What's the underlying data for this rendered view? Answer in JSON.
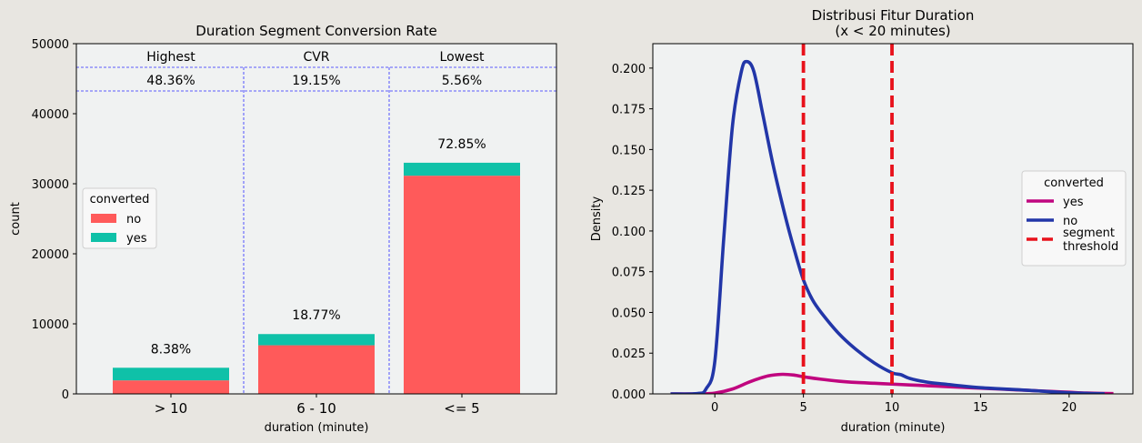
{
  "chart_data": [
    {
      "type": "bar",
      "title": "Duration Segment Conversion Rate",
      "xlabel": "duration (minute)",
      "ylabel": "count",
      "ylim": [
        0,
        50000
      ],
      "yticks": [
        0,
        10000,
        20000,
        30000,
        40000,
        50000
      ],
      "stacked": true,
      "categories": [
        "> 10",
        "6 - 10",
        "<= 5"
      ],
      "series": [
        {
          "name": "no",
          "color": "#ff5a5a",
          "values": [
            1930,
            6940,
            31150
          ]
        },
        {
          "name": "yes",
          "color": "#0fc1a8",
          "values": [
            1800,
            1600,
            1850
          ]
        }
      ],
      "bar_labels": [
        "8.38%",
        "18.77%",
        "72.85%"
      ],
      "legend": {
        "title": "converted",
        "position": "center-left",
        "entries": [
          "no",
          "yes"
        ]
      },
      "table": {
        "headers": [
          "Highest",
          "CVR",
          "Lowest"
        ],
        "values": [
          "48.36%",
          "19.15%",
          "5.56%"
        ]
      },
      "background": "#f0f2f2"
    },
    {
      "type": "line",
      "title": "Distribusi Fitur Duration\n(x < 20 minutes)",
      "title_lines": [
        "Distribusi Fitur Duration",
        "(x < 20 minutes)"
      ],
      "xlabel": "duration (minute)",
      "ylabel": "Density",
      "xlim": [
        -3.5,
        23.6
      ],
      "ylim": [
        0,
        0.215
      ],
      "xticks": [
        0,
        5,
        10,
        15,
        20
      ],
      "yticks": [
        "0.000",
        "0.025",
        "0.050",
        "0.075",
        "0.100",
        "0.125",
        "0.150",
        "0.175",
        "0.200"
      ],
      "series": [
        {
          "name": "yes",
          "color": "#c0067f",
          "x": [
            -2.5,
            -1,
            0,
            1,
            2,
            3,
            3.8,
            4.5,
            5,
            6,
            7,
            8,
            9,
            10,
            11,
            12,
            13,
            14,
            15,
            16,
            17,
            18,
            19,
            20,
            21,
            22.5
          ],
          "y": [
            0,
            0,
            0.0005,
            0.003,
            0.0075,
            0.011,
            0.012,
            0.0115,
            0.0105,
            0.009,
            0.0078,
            0.007,
            0.0065,
            0.006,
            0.0055,
            0.005,
            0.0045,
            0.004,
            0.0035,
            0.003,
            0.0025,
            0.002,
            0.0015,
            0.001,
            0.0005,
            0.0002
          ]
        },
        {
          "name": "no",
          "color": "#2236a8",
          "x": [
            -2.5,
            -1,
            -0.5,
            0,
            0.5,
            1,
            1.5,
            1.8,
            2.2,
            2.7,
            3.3,
            4,
            4.5,
            5,
            5.5,
            6,
            7,
            8,
            9,
            10,
            10.5,
            11,
            12,
            13,
            14,
            15,
            16,
            17,
            18,
            19,
            20,
            21,
            22
          ],
          "y": [
            0,
            0.0002,
            0.003,
            0.02,
            0.095,
            0.165,
            0.198,
            0.204,
            0.198,
            0.172,
            0.14,
            0.108,
            0.088,
            0.07,
            0.058,
            0.05,
            0.037,
            0.027,
            0.019,
            0.013,
            0.0118,
            0.0095,
            0.0072,
            0.006,
            0.0048,
            0.0038,
            0.0032,
            0.0026,
            0.002,
            0.0013,
            0.0007,
            0.0003,
            0.0001
          ]
        }
      ],
      "thresholds": [
        5,
        10
      ],
      "threshold_color": "#e8111b",
      "legend": {
        "title": "converted",
        "position": "center-right",
        "entries": [
          {
            "label": "yes",
            "color": "#c0067f",
            "style": "solid"
          },
          {
            "label": "no",
            "color": "#2236a8",
            "style": "solid"
          },
          {
            "label": "segment\nthreshold",
            "lines": [
              "segment",
              "threshold"
            ],
            "color": "#e8111b",
            "style": "dashed"
          }
        ]
      },
      "background": "#f0f2f2"
    }
  ]
}
